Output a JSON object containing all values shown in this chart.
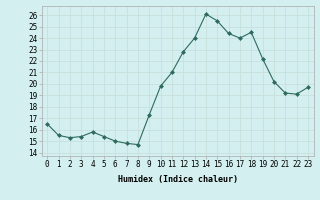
{
  "x": [
    0,
    1,
    2,
    3,
    4,
    5,
    6,
    7,
    8,
    9,
    10,
    11,
    12,
    13,
    14,
    15,
    16,
    17,
    18,
    19,
    20,
    21,
    22,
    23
  ],
  "y": [
    16.5,
    15.5,
    15.3,
    15.4,
    15.8,
    15.4,
    15.0,
    14.8,
    14.7,
    17.3,
    19.8,
    21.0,
    22.8,
    24.0,
    26.1,
    25.5,
    24.4,
    24.0,
    24.5,
    22.2,
    20.2,
    19.2,
    19.1,
    19.7
  ],
  "xlabel": "Humidex (Indice chaleur)",
  "ylabel_ticks": [
    14,
    15,
    16,
    17,
    18,
    19,
    20,
    21,
    22,
    23,
    24,
    25,
    26
  ],
  "ylim": [
    13.7,
    26.8
  ],
  "xlim": [
    -0.5,
    23.5
  ],
  "line_color": "#2e6b5e",
  "marker_color": "#2e6b5e",
  "bg_color": "#d4efef",
  "grid_color": "#c8e0da",
  "xlabel_fontsize": 6.0,
  "tick_fontsize": 5.5
}
